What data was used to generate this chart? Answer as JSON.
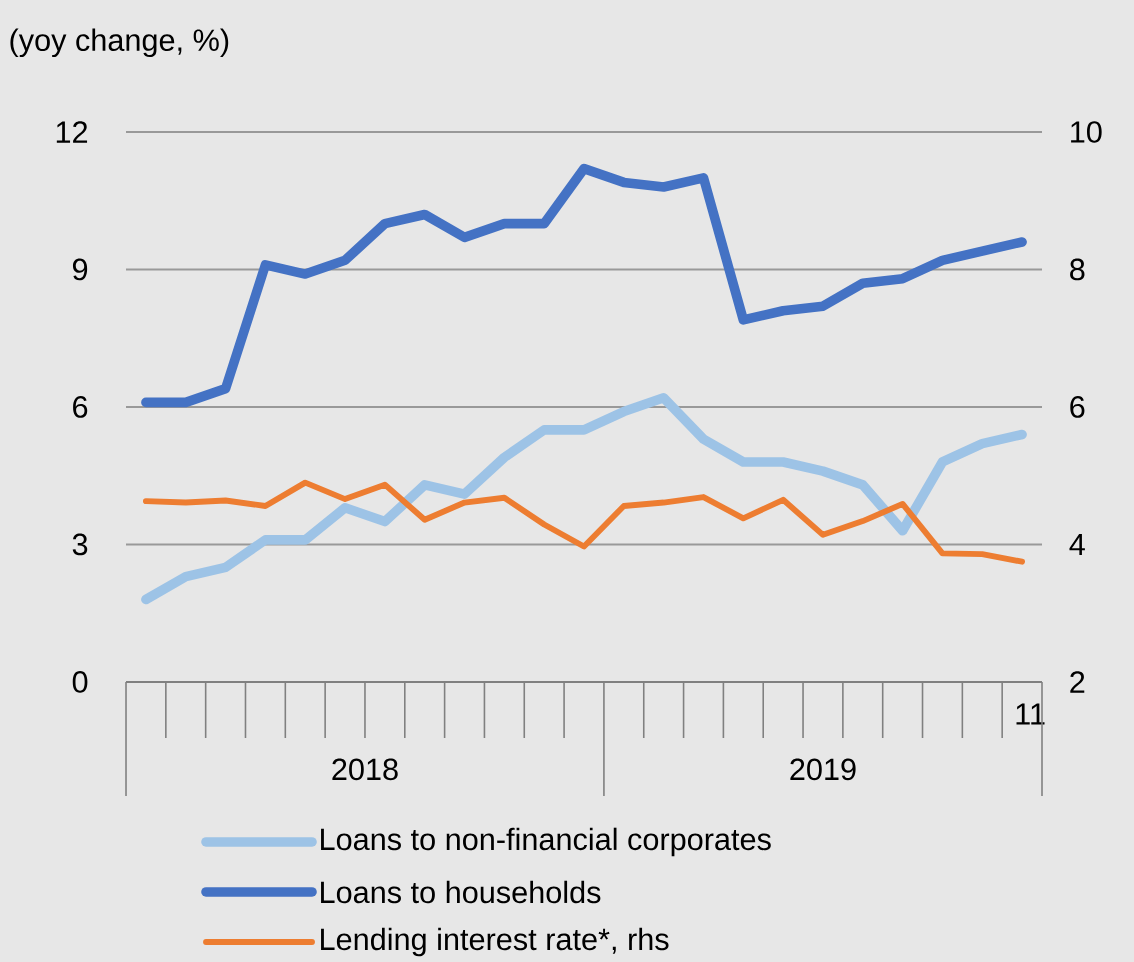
{
  "chart_data": {
    "type": "line",
    "ylabel": "(yoy change, %)",
    "categories": [
      null,
      null,
      null,
      null,
      null,
      null,
      null,
      null,
      null,
      null,
      null,
      null,
      null,
      null,
      null,
      null,
      null,
      null,
      null,
      null,
      null,
      null,
      "11"
    ],
    "series": [
      {
        "name": "Loans to non-financial corporates",
        "color": "#9dc3e6",
        "values": [
          1.8,
          2.3,
          2.5,
          3.1,
          3.1,
          3.8,
          3.5,
          4.3,
          4.1,
          4.9,
          5.5,
          5.5,
          5.9,
          6.2,
          5.3,
          4.8,
          4.8,
          4.6,
          4.3,
          3.3,
          4.8,
          5.2,
          5.4
        ]
      },
      {
        "name": "Loans to households",
        "color": "#4472c4",
        "values": [
          6.1,
          6.1,
          6.4,
          9.1,
          8.9,
          9.2,
          10.0,
          10.2,
          9.7,
          10.0,
          10.0,
          11.2,
          10.9,
          10.8,
          11.0,
          7.9,
          8.1,
          8.2,
          8.7,
          8.8,
          9.2,
          9.4,
          9.6
        ]
      },
      {
        "name": "Lending interest rate*, rhs",
        "color": "#ed7d31",
        "axis": "y2",
        "values": [
          4.63,
          4.61,
          4.64,
          4.56,
          4.9,
          4.66,
          4.87,
          4.36,
          4.61,
          4.68,
          4.29,
          3.97,
          4.56,
          4.61,
          4.69,
          4.38,
          4.65,
          4.14,
          4.34,
          4.59,
          3.87,
          3.86,
          3.75
        ]
      }
    ],
    "ylim": [
      0,
      12
    ],
    "yticks": [
      0,
      3,
      6,
      9,
      12
    ],
    "y2lim": [
      2,
      10
    ],
    "y2ticks": [
      2,
      4,
      6,
      8,
      10
    ],
    "annotations": [
      "2018",
      "2019"
    ],
    "grid": "y",
    "legend": "bottom",
    "marker": "none",
    "line_style": "solid"
  }
}
